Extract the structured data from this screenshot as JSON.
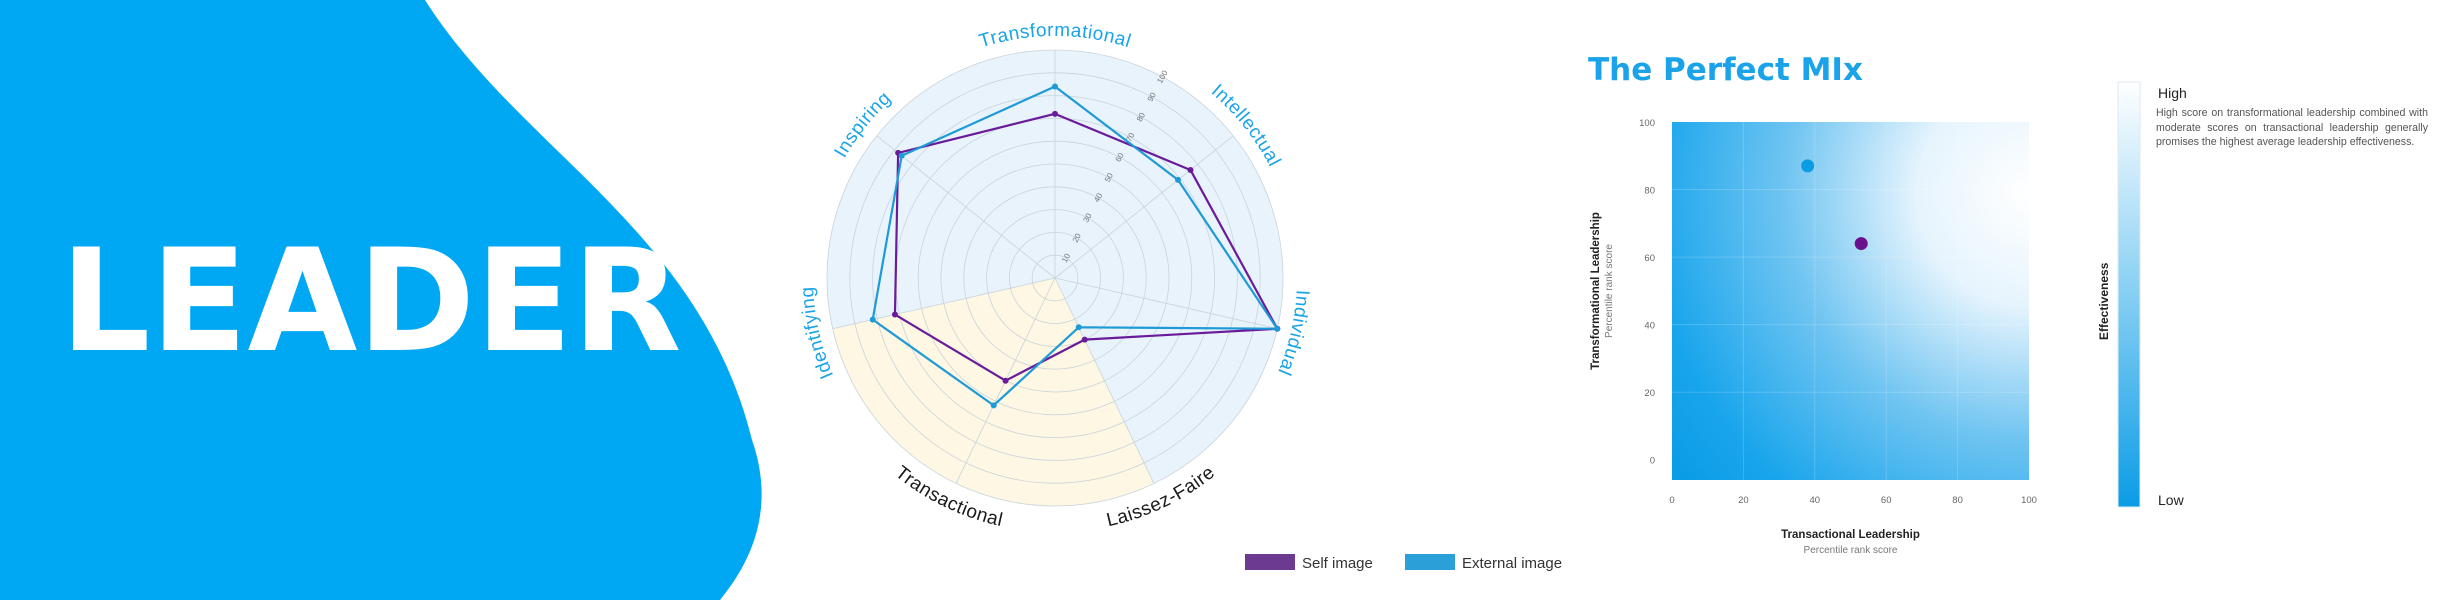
{
  "banner": {
    "title": "LEADER",
    "accent_color": "#00a8f3"
  },
  "radar": {
    "chart_data": {
      "type": "radar",
      "axes": [
        "Transformational",
        "Intellectual",
        "Individual",
        "Laissez-Faire",
        "Transactional",
        "Identifying",
        "Inspiring"
      ],
      "top_axis_labels": [
        "Transformational",
        "Intellectual",
        "Individual",
        "Identifying",
        "Inspiring"
      ],
      "top_axis_color": "#1aa3e8",
      "bottom_axis_labels": [
        "Laissez-Faire",
        "Transactional"
      ],
      "range": [
        0,
        100
      ],
      "ticks": [
        "10",
        "20",
        "30",
        "40",
        "50",
        "60",
        "70",
        "80",
        "90",
        "100"
      ],
      "series": [
        {
          "name": "Self image",
          "color": "#6a1b9a",
          "values": [
            72,
            76,
            100,
            30,
            50,
            72,
            88
          ]
        },
        {
          "name": "External image",
          "color": "#1e9ad6",
          "values": [
            84,
            69,
            100,
            24,
            62,
            82,
            86
          ]
        }
      ],
      "sector_colors": {
        "top": "#e8f3fc",
        "bottom": "#fdf7e3"
      }
    }
  },
  "legend": {
    "items": [
      {
        "label": "Self image",
        "color": "#6c3b91"
      },
      {
        "label": "External image",
        "color": "#2b9fd8"
      }
    ]
  },
  "mix": {
    "title": "The Perfect MIx",
    "title_color": "#1aa3e8",
    "chart_data": {
      "type": "scatter",
      "x": [
        38,
        53
      ],
      "y": [
        87,
        64
      ],
      "point_colors": [
        "#0b9de4",
        "#6a0f8e"
      ],
      "xlabel": "Transactional Leadership",
      "xsub": "Percentile rank score",
      "ylabel": "Transformational Leadership",
      "ysub": "Percentile rank score",
      "xlim": [
        0,
        100
      ],
      "ylim": [
        -6,
        100
      ],
      "xticks": [
        "0",
        "20",
        "40",
        "60",
        "80",
        "100"
      ],
      "yticks": [
        "0",
        "20",
        "40",
        "60",
        "80",
        "100"
      ]
    }
  },
  "scale": {
    "label": "Effectiveness",
    "high": "High",
    "low": "Low",
    "description": "High score on transformational leadership combined with moderate scores on transactional leadership generally promises the highest average leadership effectiveness."
  }
}
